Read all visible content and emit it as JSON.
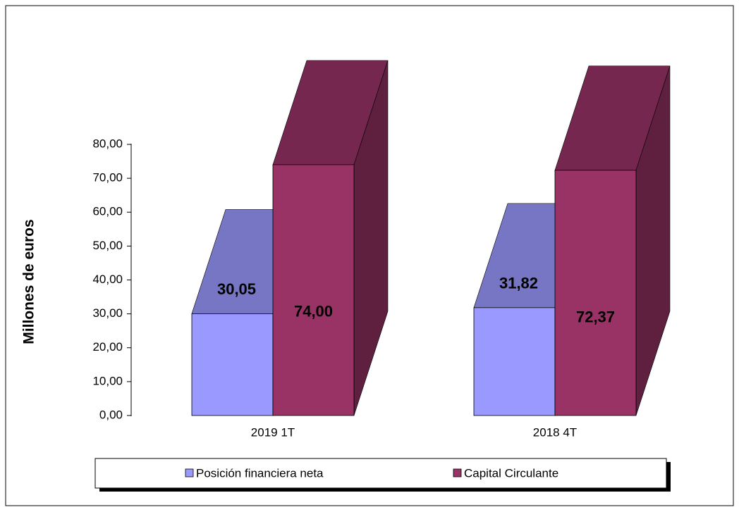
{
  "chart_data": {
    "type": "bar3d",
    "y_label": "Millones  de euros",
    "categories": [
      "2019 1T",
      "2018 4T"
    ],
    "series": [
      {
        "name": "Posición financiera neta",
        "color": "#9999ff",
        "values": [
          30.05,
          31.82
        ],
        "value_labels": [
          "30,05",
          "31,82"
        ]
      },
      {
        "name": "Capital Circulante",
        "color": "#993366",
        "values": [
          74.0,
          72.37
        ],
        "value_labels": [
          "74,00",
          "72,37"
        ]
      }
    ],
    "ylim": [
      0,
      80
    ],
    "yticks": [
      {
        "value": 0,
        "label": "0,00"
      },
      {
        "value": 10,
        "label": "10,00"
      },
      {
        "value": 20,
        "label": "20,00"
      },
      {
        "value": 30,
        "label": "30,00"
      },
      {
        "value": 40,
        "label": "40,00"
      },
      {
        "value": 50,
        "label": "50,00"
      },
      {
        "value": 60,
        "label": "60,00"
      },
      {
        "value": 70,
        "label": "70,00"
      },
      {
        "value": 80,
        "label": "80,00"
      }
    ],
    "legend": "bottom"
  }
}
